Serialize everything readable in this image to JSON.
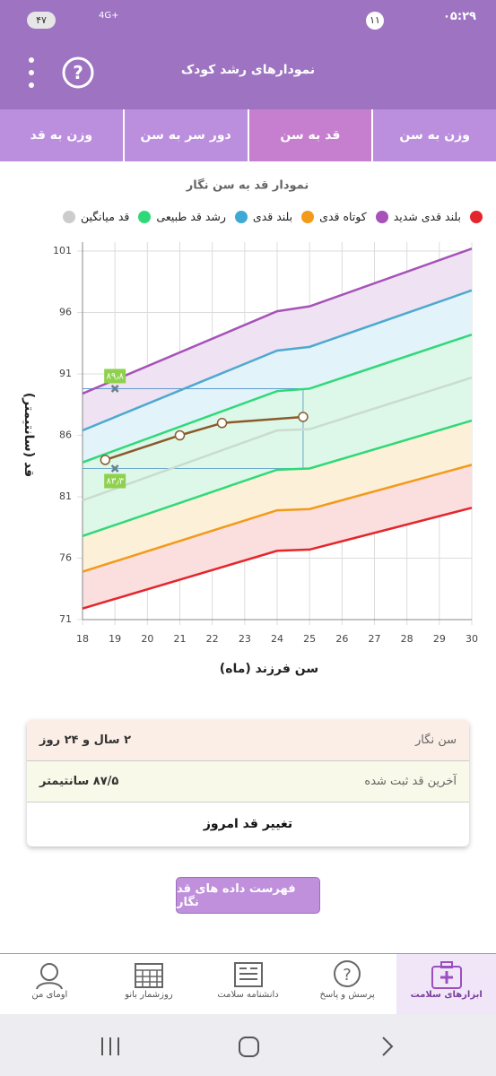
{
  "status_bar": {
    "time": "۰۵:۲۹",
    "badge": "۱۱",
    "battery": "۴۷",
    "network": "4G+"
  },
  "header": {
    "title": "نمودارهای رشد کودک"
  },
  "tabs": [
    "وزن به سن",
    "قد به سن",
    "دور سر به سن",
    "وزن به قد"
  ],
  "chart_data": {
    "type": "line",
    "title": "نمودار قد به سن نگار",
    "x_label": "سن فرزند (ماه)",
    "y_label": "قد (سانتیمتر)",
    "legend": [
      {
        "color": "#e3262c"
      },
      {
        "label": "بلند قدی شدید",
        "color": "#a652b8"
      },
      {
        "label": "کوتاه قدی",
        "color": "#f29a1a"
      },
      {
        "label": "بلند قدی",
        "color": "#3fa9d6"
      },
      {
        "label": "رشد قد طبیعی",
        "color": "#2fd978"
      },
      {
        "label": "قد میانگین",
        "color": "#cccccc"
      }
    ],
    "xlim": [
      18,
      30
    ],
    "xticks": [
      18,
      19,
      20,
      21,
      22,
      23,
      24,
      25,
      26,
      27,
      28,
      29,
      30
    ],
    "ylim": [
      71,
      101
    ],
    "yticks": [
      71,
      76,
      81,
      86,
      91,
      96,
      101
    ],
    "grid": true,
    "series": [
      {
        "color": "#a652b8",
        "fill": "#efe2f3",
        "x": [
          18,
          24,
          25,
          30
        ],
        "values": [
          89.4,
          96.1,
          96.5,
          101.2
        ]
      },
      {
        "color": "#4ea9cf",
        "fill": "#e2f3fa",
        "x": [
          18,
          24,
          25,
          30
        ],
        "values": [
          86.4,
          92.9,
          93.2,
          97.8
        ]
      },
      {
        "color": "#2fd978",
        "fill": "#ddf8e8",
        "x": [
          18,
          24,
          25,
          30
        ],
        "values": [
          83.8,
          89.6,
          89.8,
          94.2
        ]
      },
      {
        "color": "#c9dccf",
        "fill": "#ddf8e8",
        "x": [
          18,
          24,
          25,
          30
        ],
        "values": [
          80.7,
          86.4,
          86.5,
          90.7
        ]
      },
      {
        "color": "#2fd978",
        "fill": "#fdf0d8",
        "x": [
          18,
          24,
          25,
          30
        ],
        "values": [
          77.8,
          83.2,
          83.3,
          87.2
        ]
      },
      {
        "color": "#f29a1a",
        "fill": "#fbdede",
        "x": [
          18,
          24,
          25,
          30
        ],
        "values": [
          74.9,
          79.9,
          80.0,
          83.6
        ]
      },
      {
        "color": "#e3262c",
        "x": [
          18,
          24,
          25,
          30
        ],
        "values": [
          71.9,
          76.6,
          76.7,
          80.1
        ]
      },
      {
        "color": "#8b5a2b",
        "markers": true,
        "x": [
          18.7,
          21,
          22.3,
          24.8
        ],
        "values": [
          84.0,
          86.0,
          87.0,
          87.5
        ]
      }
    ],
    "range_markers": [
      {
        "x": 19,
        "value": 89.8,
        "label": "۸۹٫۸"
      },
      {
        "x": 19,
        "value": 83.3,
        "label": "۸۳٫۳"
      }
    ]
  },
  "info_card": {
    "rows": [
      {
        "label": "سن نگار",
        "value": "۲ سال و ۲۴ روز"
      },
      {
        "label": "آخرین قد ثبت شده",
        "value": "۸۷/۵ سانتیمتر"
      }
    ],
    "action": "تغییر قد امروز"
  },
  "button": "فهرست داده های قد نگار",
  "bottom_nav": [
    "ابزارهای سلامت",
    "پرسش و پاسخ",
    "دانشنامه سلامت",
    "روزشمار بانو",
    "اومای من"
  ]
}
